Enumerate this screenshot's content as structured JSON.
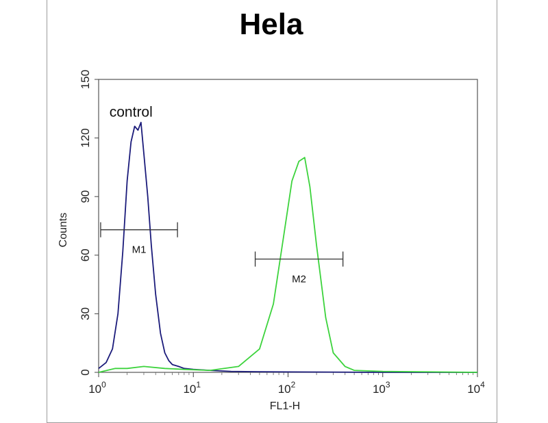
{
  "chart_data": {
    "type": "line",
    "title": "Hela",
    "xlabel": "FL1-H",
    "ylabel": "Counts",
    "x_scale": "log",
    "xlim": [
      1,
      10000
    ],
    "ylim": [
      0,
      150
    ],
    "x_ticks": [
      {
        "value": 1,
        "base": "10",
        "exp": "0"
      },
      {
        "value": 10,
        "base": "10",
        "exp": "1"
      },
      {
        "value": 100,
        "base": "10",
        "exp": "2"
      },
      {
        "value": 1000,
        "base": "10",
        "exp": "3"
      },
      {
        "value": 10000,
        "base": "10",
        "exp": "4"
      }
    ],
    "y_ticks": [
      0,
      30,
      60,
      90,
      120,
      150
    ],
    "grid": false,
    "annotations": [
      {
        "text": "control",
        "x": 1.3,
        "y": 133
      }
    ],
    "markers": [
      {
        "label": "M1",
        "x_start": 1.05,
        "x_end": 6.8,
        "y": 73
      },
      {
        "label": "M2",
        "x_start": 45,
        "x_end": 380,
        "y": 58
      }
    ],
    "series": [
      {
        "color": "#1a1a7a",
        "x": [
          1,
          1.2,
          1.4,
          1.6,
          1.8,
          2.0,
          2.2,
          2.4,
          2.6,
          2.8,
          3.0,
          3.3,
          3.6,
          4.0,
          4.5,
          5.0,
          5.5,
          6.0,
          7.0,
          8.0,
          10,
          15,
          25,
          50,
          100,
          1000,
          10000
        ],
        "values": [
          2,
          5,
          12,
          30,
          62,
          98,
          118,
          126,
          124,
          128,
          112,
          90,
          65,
          40,
          20,
          10,
          6,
          4,
          3,
          2,
          1.5,
          1,
          0.5,
          0.3,
          0.2,
          0,
          0
        ]
      },
      {
        "color": "#3cd33c",
        "x": [
          1,
          1.5,
          2,
          3,
          5,
          8,
          15,
          30,
          50,
          70,
          90,
          110,
          130,
          150,
          170,
          200,
          250,
          300,
          400,
          500,
          1000,
          10000
        ],
        "values": [
          0,
          2,
          2,
          3,
          2,
          1.5,
          1,
          3,
          12,
          35,
          70,
          98,
          108,
          110,
          95,
          65,
          28,
          10,
          3,
          1,
          0.5,
          0
        ]
      }
    ]
  }
}
